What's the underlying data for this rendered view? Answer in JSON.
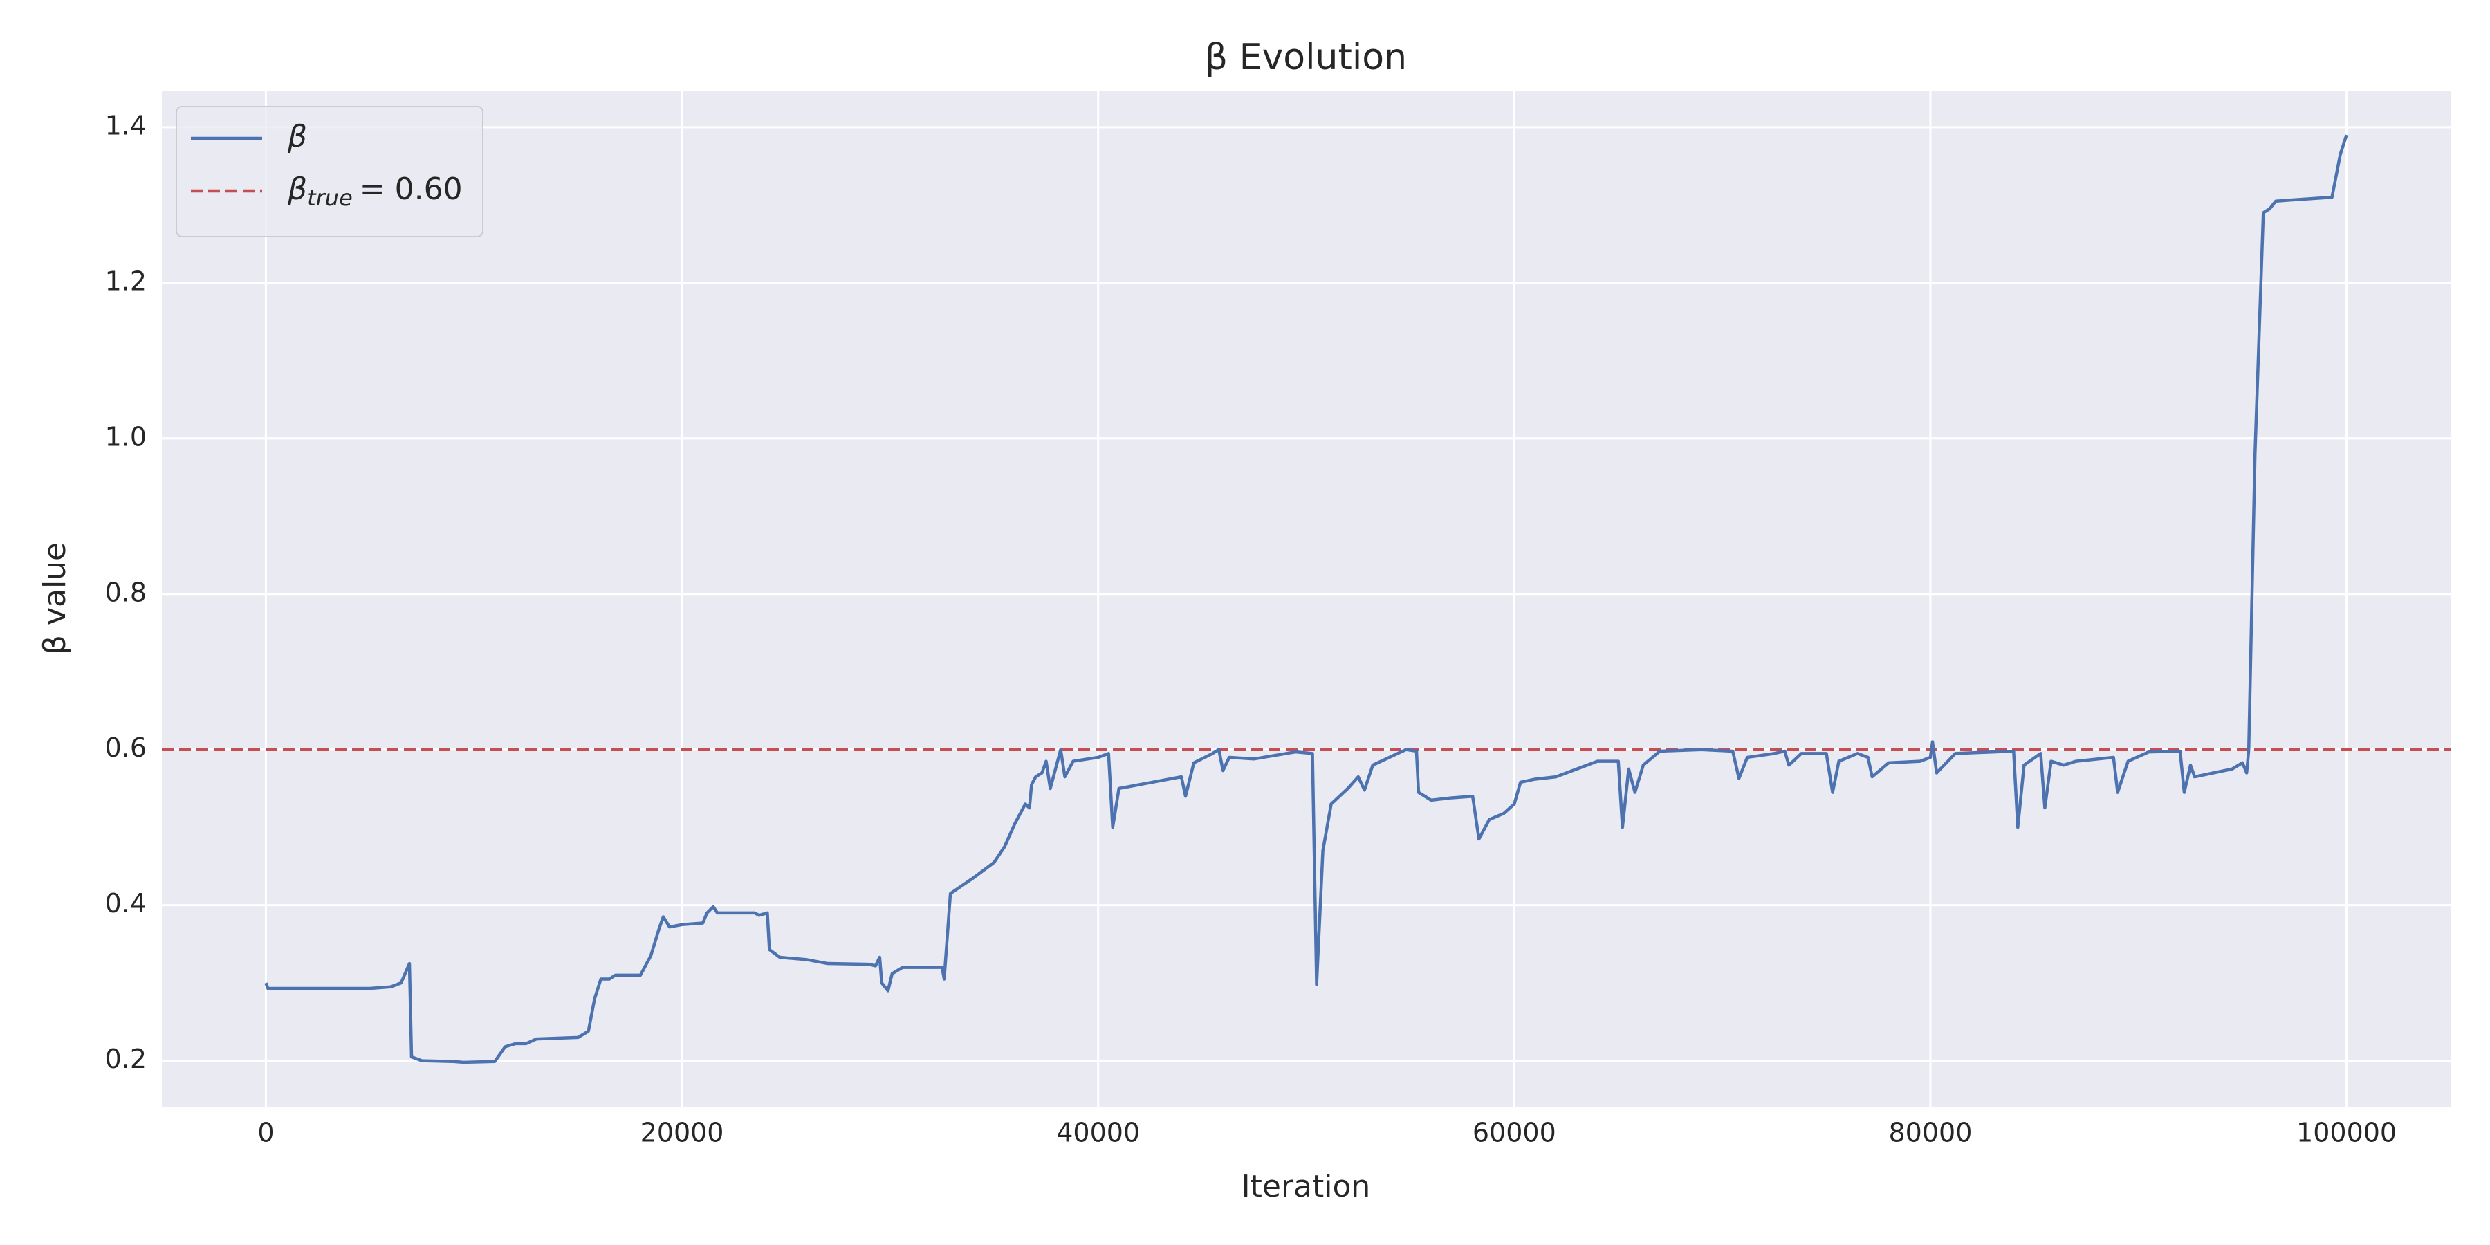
{
  "chart_data": {
    "type": "line",
    "title": "β Evolution",
    "xlabel": "Iteration",
    "ylabel": "β value",
    "xlim": [
      -5000,
      105000
    ],
    "ylim": [
      0.141,
      1.447
    ],
    "xticks": [
      0,
      20000,
      40000,
      60000,
      80000,
      100000
    ],
    "yticks": [
      0.2,
      0.4,
      0.6,
      0.8,
      {
        "value": 1,
        "label": "1.0"
      },
      1.2,
      1.4
    ],
    "grid": true,
    "legend": "upper left",
    "x": [
      0,
      100,
      5000,
      6000,
      6500,
      6900,
      7000,
      7500,
      9000,
      9500,
      11000,
      11500,
      12000,
      12500,
      13000,
      15000,
      15500,
      15800,
      16100,
      16500,
      16800,
      18000,
      18500,
      18900,
      19100,
      19400,
      20000,
      21000,
      21200,
      21500,
      21700,
      23500,
      23700,
      24100,
      24200,
      24700,
      26000,
      27000,
      29000,
      29300,
      29500,
      29600,
      29900,
      30100,
      30600,
      32500,
      32600,
      32900,
      34000,
      35000,
      35500,
      36000,
      36500,
      36700,
      36800,
      37000,
      37300,
      37500,
      37700,
      38000,
      38200,
      38400,
      38800,
      40000,
      40500,
      40700,
      41000,
      43000,
      44000,
      44200,
      44600,
      45500,
      45800,
      46000,
      46300,
      47500,
      49500,
      50300,
      50500,
      50800,
      51200,
      52000,
      52500,
      52800,
      53200,
      54000,
      54800,
      55300,
      55400,
      56000,
      57000,
      58000,
      58300,
      58800,
      59500,
      60000,
      60300,
      61000,
      62000,
      63500,
      64000,
      65000,
      65200,
      65500,
      65800,
      66200,
      67000,
      69000,
      70500,
      70800,
      71200,
      72500,
      73000,
      73200,
      73800,
      75000,
      75300,
      75600,
      76500,
      77000,
      77200,
      78000,
      79500,
      80000,
      80100,
      80300,
      81200,
      84000,
      84200,
      84500,
      85300,
      85500,
      85800,
      86400,
      87000,
      88800,
      89000,
      89500,
      90500,
      92000,
      92200,
      92500,
      92700,
      94500,
      95000,
      95200,
      95300,
      95600,
      96000,
      96300,
      96600,
      99300,
      99700,
      100000
    ],
    "series": [
      {
        "name": "β",
        "color": "#4c72b0",
        "values": [
          0.3,
          0.293,
          0.293,
          0.295,
          0.3,
          0.325,
          0.205,
          0.2,
          0.199,
          0.198,
          0.199,
          0.218,
          0.222,
          0.222,
          0.228,
          0.23,
          0.238,
          0.28,
          0.305,
          0.305,
          0.31,
          0.31,
          0.335,
          0.37,
          0.385,
          0.372,
          0.375,
          0.377,
          0.39,
          0.398,
          0.39,
          0.39,
          0.387,
          0.39,
          0.343,
          0.333,
          0.33,
          0.325,
          0.324,
          0.322,
          0.333,
          0.3,
          0.29,
          0.312,
          0.32,
          0.32,
          0.305,
          0.415,
          0.435,
          0.455,
          0.475,
          0.505,
          0.53,
          0.525,
          0.555,
          0.565,
          0.57,
          0.585,
          0.55,
          0.58,
          0.6,
          0.565,
          0.585,
          0.59,
          0.595,
          0.5,
          0.55,
          0.56,
          0.565,
          0.54,
          0.583,
          0.595,
          0.6,
          0.573,
          0.59,
          0.588,
          0.597,
          0.595,
          0.298,
          0.47,
          0.53,
          0.55,
          0.565,
          0.548,
          0.58,
          0.59,
          0.6,
          0.598,
          0.545,
          0.535,
          0.538,
          0.54,
          0.485,
          0.51,
          0.518,
          0.53,
          0.558,
          0.562,
          0.565,
          0.58,
          0.585,
          0.585,
          0.5,
          0.575,
          0.545,
          0.58,
          0.598,
          0.6,
          0.598,
          0.563,
          0.59,
          0.595,
          0.598,
          0.58,
          0.595,
          0.595,
          0.545,
          0.585,
          0.595,
          0.59,
          0.565,
          0.583,
          0.585,
          0.59,
          0.61,
          0.57,
          0.595,
          0.598,
          0.5,
          0.58,
          0.595,
          0.525,
          0.585,
          0.58,
          0.585,
          0.59,
          0.545,
          0.585,
          0.597,
          0.598,
          0.545,
          0.58,
          0.565,
          0.575,
          0.583,
          0.57,
          0.6,
          0.98,
          1.29,
          1.295,
          1.305,
          1.31,
          1.365,
          1.39
        ]
      }
    ],
    "hlines": [
      {
        "value": 0.6,
        "color": "#c44e52",
        "style": "dashed",
        "label": {
          "symbol": "β",
          "subscript": "true",
          "text": "= 0.60"
        }
      }
    ]
  }
}
